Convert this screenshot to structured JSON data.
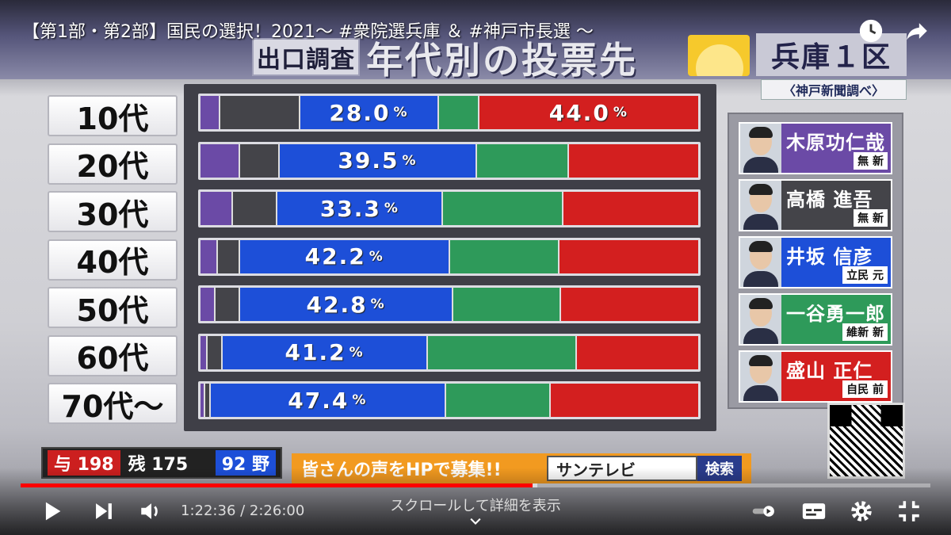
{
  "video": {
    "title": "【第1部・第2部】国民の選択！2021〜 #衆院選兵庫 ＆ #神戸市長選 〜",
    "time_display": "1:22:36 / 2:26:00",
    "scroll_hint": "スクロールして詳細を表示",
    "progress_fraction": 0.563,
    "buffered_fraction": 0.568
  },
  "broadcast": {
    "exit_poll_label": "出口調査",
    "main_title": "年代別の投票先",
    "district": "兵庫１区",
    "source": "〈神戸新聞調べ〉"
  },
  "chart_data": {
    "type": "bar",
    "stacked": true,
    "orientation": "horizontal",
    "categories": [
      "10代",
      "20代",
      "30代",
      "40代",
      "50代",
      "60代",
      "70代〜"
    ],
    "series": [
      {
        "name": "木原功仁哉",
        "color": "#6b4aa6",
        "values": [
          4.0,
          8.0,
          6.5,
          3.5,
          3.0,
          1.5,
          1.0
        ]
      },
      {
        "name": "高橋 進吾",
        "color": "#444449",
        "values": [
          16.0,
          8.0,
          9.0,
          4.5,
          5.0,
          3.0,
          1.0
        ]
      },
      {
        "name": "井坂 信彦",
        "color": "#1d4fd8",
        "values": [
          28.0,
          39.5,
          33.3,
          42.2,
          42.8,
          41.2,
          47.4
        ]
      },
      {
        "name": "一谷勇一郎",
        "color": "#2e9a5a",
        "values": [
          8.0,
          18.5,
          24.2,
          22.0,
          21.7,
          30.0,
          21.0
        ]
      },
      {
        "name": "盛山 正仁",
        "color": "#d31f1f",
        "values": [
          44.0,
          26.0,
          27.0,
          27.8,
          27.5,
          24.3,
          29.6
        ]
      }
    ],
    "shown_labels": [
      {
        "category": "10代",
        "series": "井坂 信彦",
        "text": "28.0"
      },
      {
        "category": "10代",
        "series": "盛山 正仁",
        "text": "44.0"
      },
      {
        "category": "20代",
        "series": "井坂 信彦",
        "text": "39.5"
      },
      {
        "category": "30代",
        "series": "井坂 信彦",
        "text": "33.3"
      },
      {
        "category": "40代",
        "series": "井坂 信彦",
        "text": "42.2"
      },
      {
        "category": "50代",
        "series": "井坂 信彦",
        "text": "42.8"
      },
      {
        "category": "60代",
        "series": "井坂 信彦",
        "text": "41.2"
      },
      {
        "category": "70代〜",
        "series": "井坂 信彦",
        "text": "47.4"
      }
    ],
    "unit": "%",
    "xlim": [
      0,
      100
    ]
  },
  "candidates": [
    {
      "name": "木原功仁哉",
      "party": "無 新",
      "color": "#6b4aa6"
    },
    {
      "name": "高橋 進吾",
      "party": "無 新",
      "color": "#444449"
    },
    {
      "name": "井坂 信彦",
      "party": "立民 元",
      "color": "#1d4fd8"
    },
    {
      "name": "一谷勇一郎",
      "party": "維新 新",
      "color": "#2e9a5a"
    },
    {
      "name": "盛山 正仁",
      "party": "自民 前",
      "color": "#d31f1f"
    }
  ],
  "ticker": {
    "seats_ruling": "与 198",
    "seats_remaining": "残 175",
    "seats_opposition": "92 野",
    "message": "皆さんの声をHPで募集!!",
    "search_term": "サンテレビ",
    "search_button": "検索"
  },
  "icons": {
    "clock": "clock-icon",
    "share": "share-icon",
    "play": "play-icon",
    "next": "next-icon",
    "volume": "volume-icon",
    "autoplay": "autoplay-toggle-icon",
    "subtitles": "subtitles-icon",
    "settings": "gear-icon",
    "fullscreen": "fullscreen-exit-icon"
  }
}
